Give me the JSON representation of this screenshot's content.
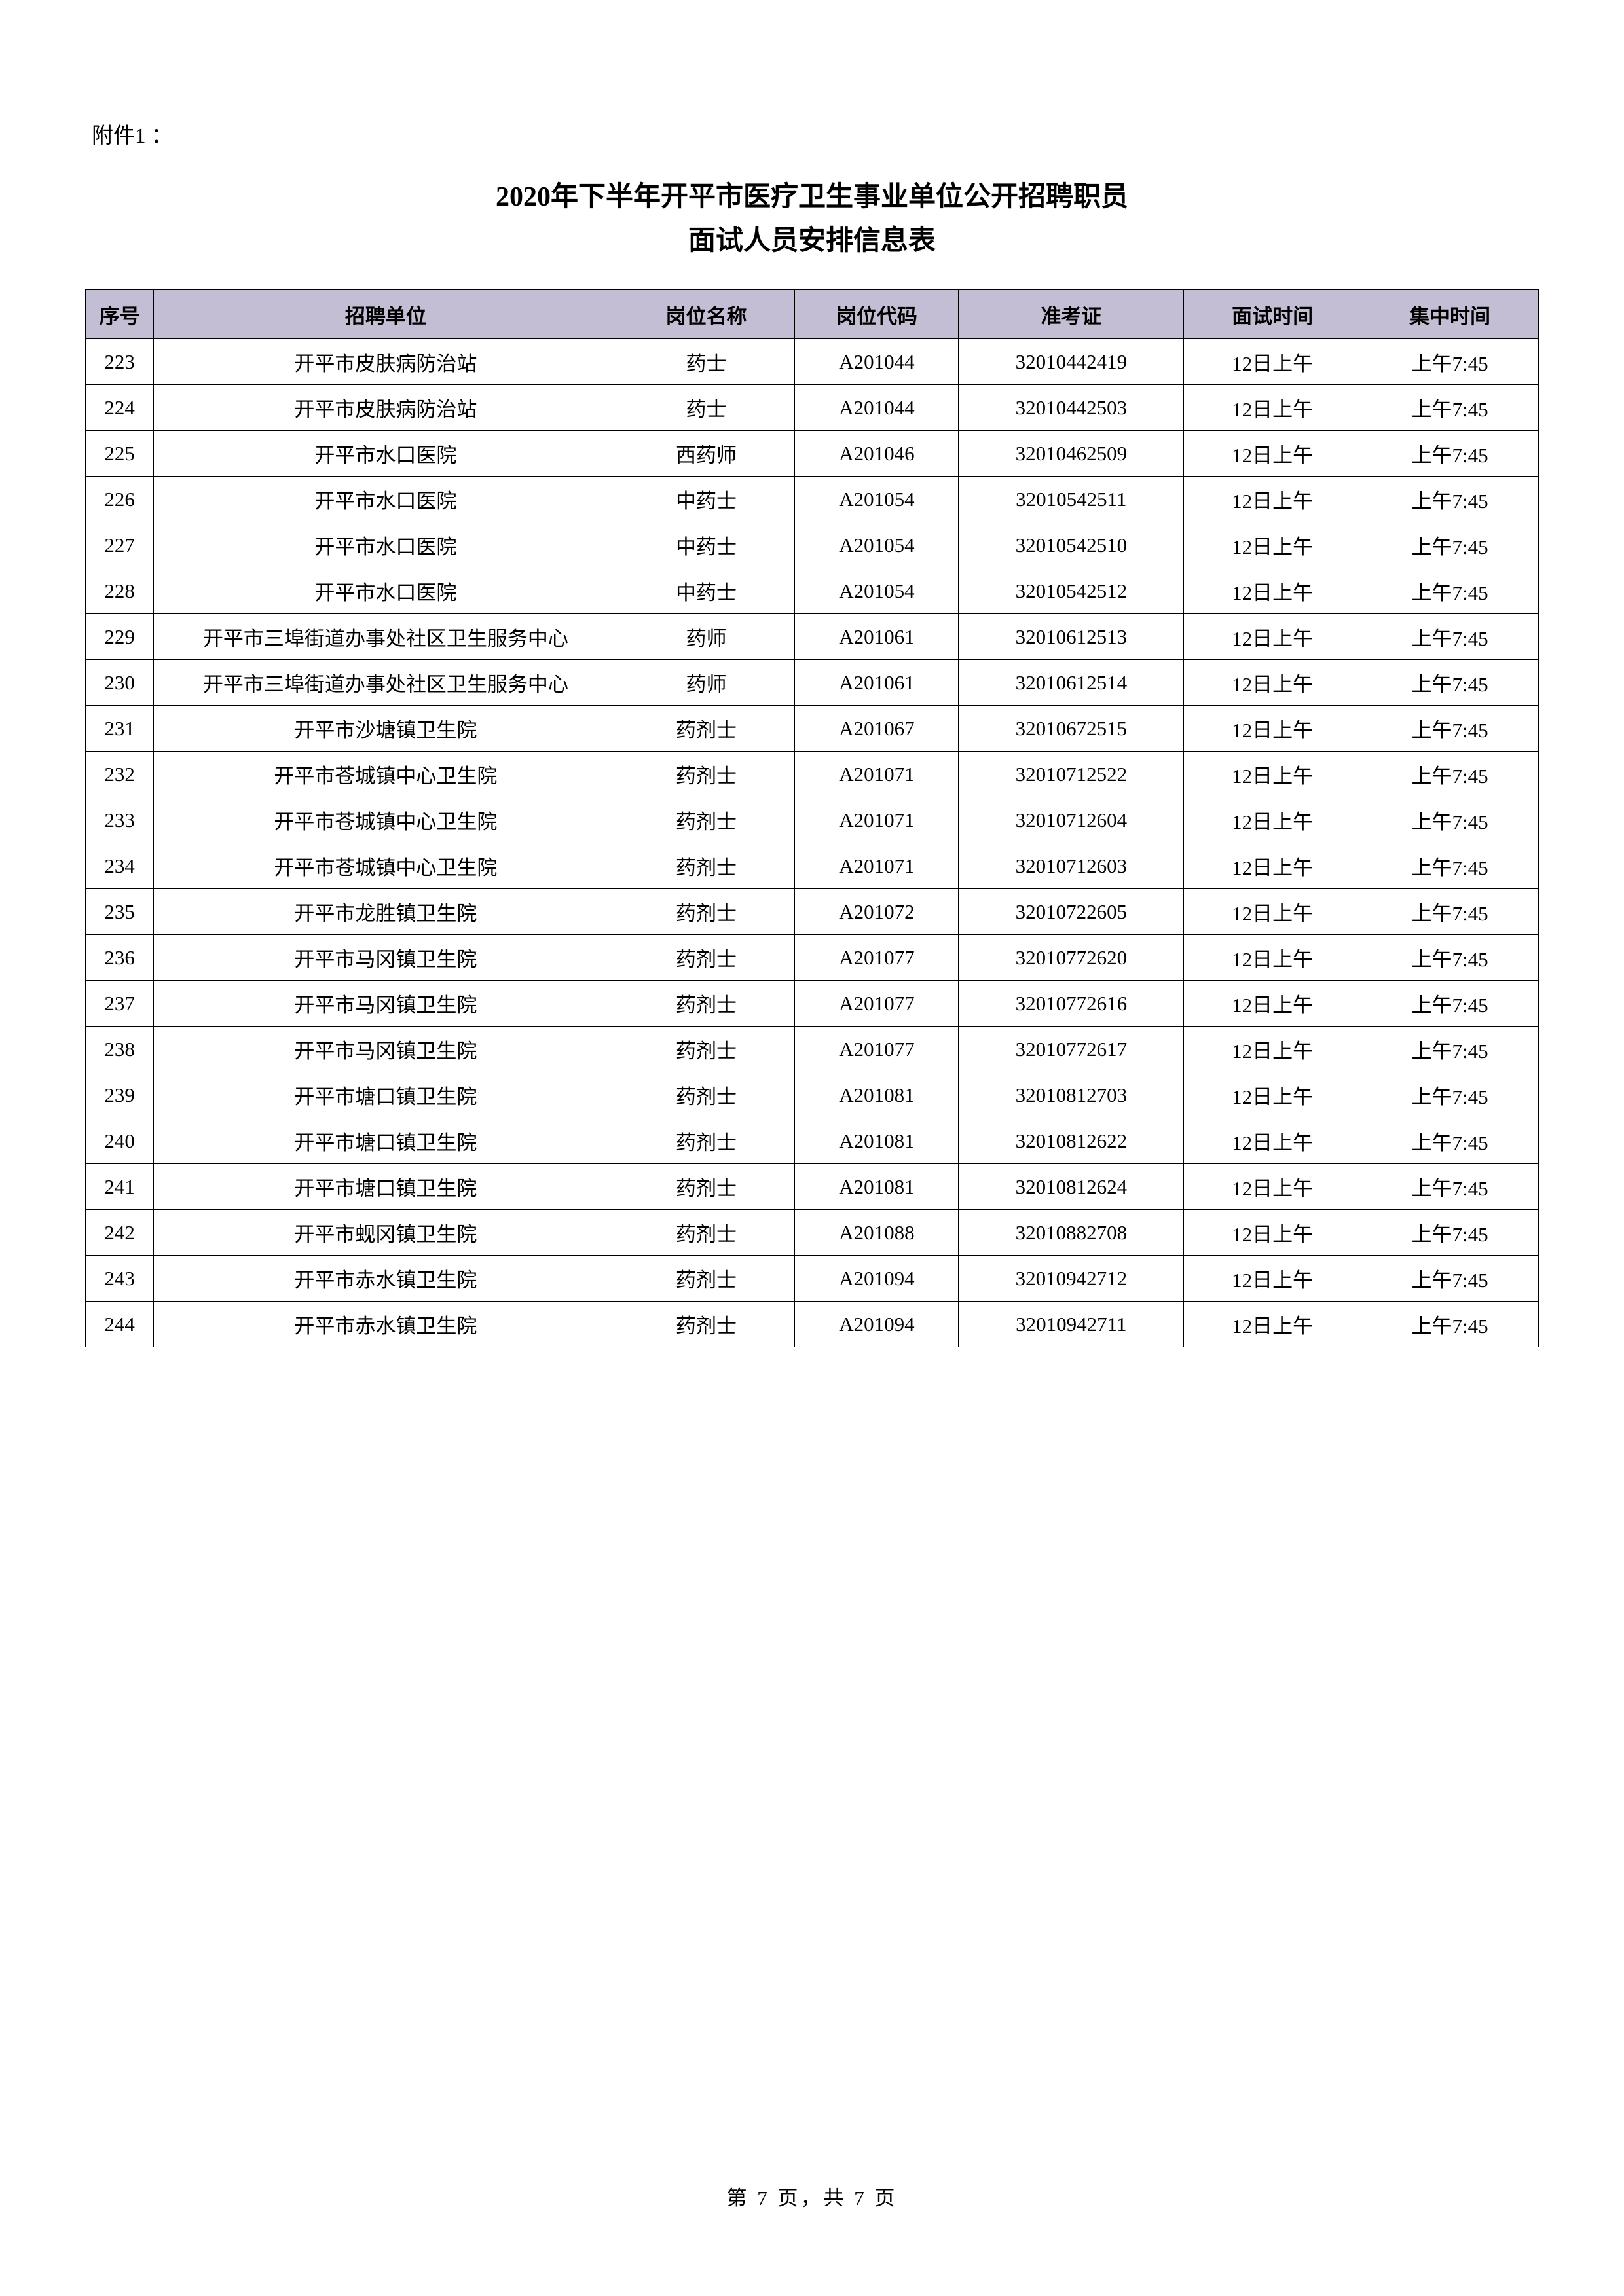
{
  "attachment_label": "附件1 ：",
  "title_line1": "2020年下半年开平市医疗卫生事业单位公开招聘职员",
  "title_line2": "面试人员安排信息表",
  "columns": {
    "seq": "序号",
    "unit": "招聘单位",
    "job": "岗位名称",
    "code": "岗位代码",
    "adm": "准考证",
    "itime": "面试时间",
    "ctime": "集中时间"
  },
  "rows": [
    {
      "seq": "223",
      "unit": "开平市皮肤病防治站",
      "job": "药士",
      "code": "A201044",
      "adm": "32010442419",
      "itime": "12日上午",
      "ctime": "上午7:45"
    },
    {
      "seq": "224",
      "unit": "开平市皮肤病防治站",
      "job": "药士",
      "code": "A201044",
      "adm": "32010442503",
      "itime": "12日上午",
      "ctime": "上午7:45"
    },
    {
      "seq": "225",
      "unit": "开平市水口医院",
      "job": "西药师",
      "code": "A201046",
      "adm": "32010462509",
      "itime": "12日上午",
      "ctime": "上午7:45"
    },
    {
      "seq": "226",
      "unit": "开平市水口医院",
      "job": "中药士",
      "code": "A201054",
      "adm": "32010542511",
      "itime": "12日上午",
      "ctime": "上午7:45"
    },
    {
      "seq": "227",
      "unit": "开平市水口医院",
      "job": "中药士",
      "code": "A201054",
      "adm": "32010542510",
      "itime": "12日上午",
      "ctime": "上午7:45"
    },
    {
      "seq": "228",
      "unit": "开平市水口医院",
      "job": "中药士",
      "code": "A201054",
      "adm": "32010542512",
      "itime": "12日上午",
      "ctime": "上午7:45"
    },
    {
      "seq": "229",
      "unit": "开平市三埠街道办事处社区卫生服务中心",
      "job": "药师",
      "code": "A201061",
      "adm": "32010612513",
      "itime": "12日上午",
      "ctime": "上午7:45"
    },
    {
      "seq": "230",
      "unit": "开平市三埠街道办事处社区卫生服务中心",
      "job": "药师",
      "code": "A201061",
      "adm": "32010612514",
      "itime": "12日上午",
      "ctime": "上午7:45"
    },
    {
      "seq": "231",
      "unit": "开平市沙塘镇卫生院",
      "job": "药剂士",
      "code": "A201067",
      "adm": "32010672515",
      "itime": "12日上午",
      "ctime": "上午7:45"
    },
    {
      "seq": "232",
      "unit": "开平市苍城镇中心卫生院",
      "job": "药剂士",
      "code": "A201071",
      "adm": "32010712522",
      "itime": "12日上午",
      "ctime": "上午7:45"
    },
    {
      "seq": "233",
      "unit": "开平市苍城镇中心卫生院",
      "job": "药剂士",
      "code": "A201071",
      "adm": "32010712604",
      "itime": "12日上午",
      "ctime": "上午7:45"
    },
    {
      "seq": "234",
      "unit": "开平市苍城镇中心卫生院",
      "job": "药剂士",
      "code": "A201071",
      "adm": "32010712603",
      "itime": "12日上午",
      "ctime": "上午7:45"
    },
    {
      "seq": "235",
      "unit": "开平市龙胜镇卫生院",
      "job": "药剂士",
      "code": "A201072",
      "adm": "32010722605",
      "itime": "12日上午",
      "ctime": "上午7:45"
    },
    {
      "seq": "236",
      "unit": "开平市马冈镇卫生院",
      "job": "药剂士",
      "code": "A201077",
      "adm": "32010772620",
      "itime": "12日上午",
      "ctime": "上午7:45"
    },
    {
      "seq": "237",
      "unit": "开平市马冈镇卫生院",
      "job": "药剂士",
      "code": "A201077",
      "adm": "32010772616",
      "itime": "12日上午",
      "ctime": "上午7:45"
    },
    {
      "seq": "238",
      "unit": "开平市马冈镇卫生院",
      "job": "药剂士",
      "code": "A201077",
      "adm": "32010772617",
      "itime": "12日上午",
      "ctime": "上午7:45"
    },
    {
      "seq": "239",
      "unit": "开平市塘口镇卫生院",
      "job": "药剂士",
      "code": "A201081",
      "adm": "32010812703",
      "itime": "12日上午",
      "ctime": "上午7:45"
    },
    {
      "seq": "240",
      "unit": "开平市塘口镇卫生院",
      "job": "药剂士",
      "code": "A201081",
      "adm": "32010812622",
      "itime": "12日上午",
      "ctime": "上午7:45"
    },
    {
      "seq": "241",
      "unit": "开平市塘口镇卫生院",
      "job": "药剂士",
      "code": "A201081",
      "adm": "32010812624",
      "itime": "12日上午",
      "ctime": "上午7:45"
    },
    {
      "seq": "242",
      "unit": "开平市蚬冈镇卫生院",
      "job": "药剂士",
      "code": "A201088",
      "adm": "32010882708",
      "itime": "12日上午",
      "ctime": "上午7:45"
    },
    {
      "seq": "243",
      "unit": "开平市赤水镇卫生院",
      "job": "药剂士",
      "code": "A201094",
      "adm": "32010942712",
      "itime": "12日上午",
      "ctime": "上午7:45"
    },
    {
      "seq": "244",
      "unit": "开平市赤水镇卫生院",
      "job": "药剂士",
      "code": "A201094",
      "adm": "32010942711",
      "itime": "12日上午",
      "ctime": "上午7:45"
    }
  ],
  "footer": "第 7 页，共 7 页"
}
